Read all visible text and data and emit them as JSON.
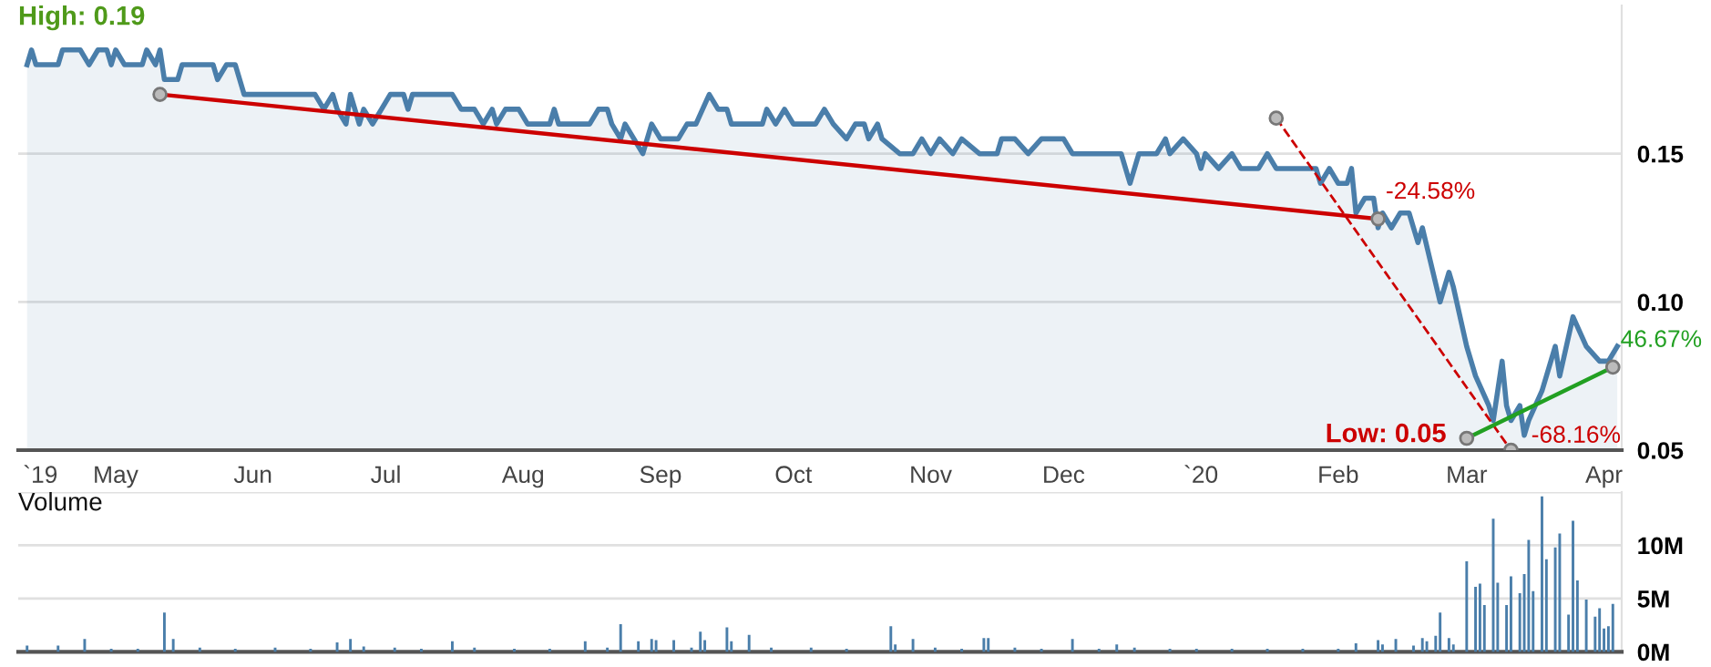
{
  "chart_data": [
    {
      "type": "area",
      "xlim": [
        "2019-04-09",
        "2020-04-05"
      ],
      "xticks": [
        {
          "value": "2019-04-14",
          "label": "`19"
        },
        {
          "value": "2019-05-01",
          "label": "May"
        },
        {
          "value": "2019-06-01",
          "label": "Jun"
        },
        {
          "value": "2019-07-01",
          "label": "Jul"
        },
        {
          "value": "2019-08-01",
          "label": "Aug"
        },
        {
          "value": "2019-09-01",
          "label": "Sep"
        },
        {
          "value": "2019-10-01",
          "label": "Oct"
        },
        {
          "value": "2019-11-01",
          "label": "Nov"
        },
        {
          "value": "2019-12-01",
          "label": "Dec"
        },
        {
          "value": "2020-01-01",
          "label": "`20"
        },
        {
          "value": "2020-02-01",
          "label": "Feb"
        },
        {
          "value": "2020-03-01",
          "label": "Mar"
        },
        {
          "value": "2020-04-01",
          "label": "Apr"
        }
      ],
      "ylim": [
        0.05,
        0.2
      ],
      "yticks": [
        {
          "value": 0.05,
          "label": "0.05"
        },
        {
          "value": 0.1,
          "label": "0.10"
        },
        {
          "value": 0.15,
          "label": "0.15"
        }
      ],
      "grid": "y",
      "series": [
        {
          "color": "#4a7eaa",
          "x": [
            "2019-04-11",
            "2019-04-12",
            "2019-04-13",
            "2019-04-18",
            "2019-04-19",
            "2019-04-23",
            "2019-04-25",
            "2019-04-27",
            "2019-04-29",
            "2019-04-30",
            "2019-05-01",
            "2019-05-03",
            "2019-05-07",
            "2019-05-08",
            "2019-05-10",
            "2019-05-11",
            "2019-05-12",
            "2019-05-15",
            "2019-05-16",
            "2019-05-23",
            "2019-05-24",
            "2019-05-26",
            "2019-05-28",
            "2019-05-30",
            "2019-06-15",
            "2019-06-17",
            "2019-06-19",
            "2019-06-20",
            "2019-06-22",
            "2019-06-23",
            "2019-06-25",
            "2019-06-26",
            "2019-06-28",
            "2019-07-02",
            "2019-07-05",
            "2019-07-06",
            "2019-07-07",
            "2019-07-16",
            "2019-07-18",
            "2019-07-21",
            "2019-07-23",
            "2019-07-25",
            "2019-07-26",
            "2019-07-28",
            "2019-07-31",
            "2019-08-02",
            "2019-08-07",
            "2019-08-08",
            "2019-08-09",
            "2019-08-16",
            "2019-08-18",
            "2019-08-20",
            "2019-08-21",
            "2019-08-23",
            "2019-08-24",
            "2019-08-26",
            "2019-08-28",
            "2019-08-30",
            "2019-09-01",
            "2019-09-05",
            "2019-09-07",
            "2019-09-09",
            "2019-09-12",
            "2019-09-14",
            "2019-09-16",
            "2019-09-17",
            "2019-09-24",
            "2019-09-25",
            "2019-09-27",
            "2019-09-29",
            "2019-10-01",
            "2019-10-06",
            "2019-10-08",
            "2019-10-10",
            "2019-10-13",
            "2019-10-15",
            "2019-10-17",
            "2019-10-18",
            "2019-10-20",
            "2019-10-21",
            "2019-10-25",
            "2019-10-28",
            "2019-10-30",
            "2019-11-01",
            "2019-11-03",
            "2019-11-06",
            "2019-11-08",
            "2019-11-12",
            "2019-11-16",
            "2019-11-17",
            "2019-11-20",
            "2019-11-23",
            "2019-11-26",
            "2019-12-01",
            "2019-12-03",
            "2019-12-14",
            "2019-12-16",
            "2019-12-18",
            "2019-12-22",
            "2019-12-24",
            "2019-12-25",
            "2019-12-28",
            "2019-12-31",
            "2020-01-01",
            "2020-01-02",
            "2020-01-05",
            "2020-01-08",
            "2020-01-10",
            "2020-01-14",
            "2020-01-16",
            "2020-01-18",
            "2020-01-27",
            "2020-01-28",
            "2020-01-30",
            "2020-02-01",
            "2020-02-03",
            "2020-02-04",
            "2020-02-05",
            "2020-02-07",
            "2020-02-09",
            "2020-02-10",
            "2020-02-11",
            "2020-02-13",
            "2020-02-15",
            "2020-02-17",
            "2020-02-19",
            "2020-02-20",
            "2020-02-24",
            "2020-02-26",
            "2020-02-27",
            "2020-03-01",
            "2020-03-03",
            "2020-03-06",
            "2020-03-07",
            "2020-03-09",
            "2020-03-10",
            "2020-03-11",
            "2020-03-13",
            "2020-03-14",
            "2020-03-15",
            "2020-03-18",
            "2020-03-21",
            "2020-03-22",
            "2020-03-25",
            "2020-03-28",
            "2020-03-31",
            "2020-04-02",
            "2020-04-04"
          ],
          "values": [
            0.18,
            0.185,
            0.18,
            0.18,
            0.185,
            0.185,
            0.18,
            0.185,
            0.185,
            0.18,
            0.185,
            0.18,
            0.18,
            0.185,
            0.18,
            0.185,
            0.175,
            0.175,
            0.18,
            0.18,
            0.175,
            0.18,
            0.18,
            0.17,
            0.17,
            0.165,
            0.17,
            0.165,
            0.16,
            0.17,
            0.16,
            0.165,
            0.16,
            0.17,
            0.17,
            0.165,
            0.17,
            0.17,
            0.165,
            0.165,
            0.16,
            0.165,
            0.16,
            0.165,
            0.165,
            0.16,
            0.16,
            0.165,
            0.16,
            0.16,
            0.165,
            0.165,
            0.16,
            0.155,
            0.16,
            0.155,
            0.15,
            0.16,
            0.155,
            0.155,
            0.16,
            0.16,
            0.17,
            0.165,
            0.165,
            0.16,
            0.16,
            0.165,
            0.16,
            0.165,
            0.16,
            0.16,
            0.165,
            0.16,
            0.155,
            0.16,
            0.16,
            0.155,
            0.16,
            0.155,
            0.15,
            0.15,
            0.155,
            0.15,
            0.155,
            0.15,
            0.155,
            0.15,
            0.15,
            0.155,
            0.155,
            0.15,
            0.155,
            0.155,
            0.15,
            0.15,
            0.14,
            0.15,
            0.15,
            0.155,
            0.15,
            0.155,
            0.15,
            0.145,
            0.15,
            0.145,
            0.15,
            0.145,
            0.145,
            0.15,
            0.145,
            0.145,
            0.14,
            0.145,
            0.14,
            0.14,
            0.145,
            0.13,
            0.135,
            0.135,
            0.125,
            0.13,
            0.125,
            0.13,
            0.13,
            0.12,
            0.125,
            0.1,
            0.11,
            0.105,
            0.085,
            0.075,
            0.065,
            0.06,
            0.08,
            0.065,
            0.06,
            0.065,
            0.055,
            0.06,
            0.07,
            0.085,
            0.075,
            0.095,
            0.085,
            0.08,
            0.08,
            0.085
          ]
        },
        {
          "type": "line",
          "color": "#cc0000",
          "marker": "circle",
          "x": [
            "2019-05-11",
            "2020-02-10"
          ],
          "values": [
            0.17,
            0.128
          ]
        },
        {
          "type": "line",
          "color": "#cc0000",
          "marker": "circle",
          "line_style": "dashed",
          "x": [
            "2020-01-18",
            "2020-03-11"
          ],
          "values": [
            0.162,
            0.05
          ]
        },
        {
          "type": "line",
          "color": "#22a022",
          "marker": "circle",
          "x": [
            "2020-03-01",
            "2020-04-03"
          ],
          "values": [
            0.054,
            0.078
          ]
        }
      ],
      "annotations": [
        "High: 0.19",
        {
          "text": "Low: 0.05",
          "x": "2020-03-09",
          "y": 0.05
        },
        {
          "text": "-24.58%",
          "x": "2020-02-10",
          "y": 0.128
        },
        {
          "text": "-68.16%",
          "x": "2020-03-11",
          "y": 0.05
        },
        {
          "text": "46.67%",
          "x": "2020-04-03",
          "y": 0.078
        }
      ]
    },
    {
      "type": "bar",
      "title": "Volume",
      "xlim": [
        "2019-04-09",
        "2020-04-05"
      ],
      "ylim": [
        0,
        15
      ],
      "yticks": [
        {
          "value": 0,
          "label": "0M"
        },
        {
          "value": 5,
          "label": "5M"
        },
        {
          "value": 10,
          "label": "10M"
        },
        {
          "value": 15,
          "label": null
        }
      ],
      "grid": "y",
      "tick_labels": "y",
      "series": [
        {
          "color": "#4a7eaa",
          "x": [
            "2019-04-11",
            "2019-04-18",
            "2019-04-24",
            "2019-04-30",
            "2019-05-06",
            "2019-05-12",
            "2019-05-14",
            "2019-05-20",
            "2019-05-28",
            "2019-06-06",
            "2019-06-14",
            "2019-06-20",
            "2019-06-23",
            "2019-06-26",
            "2019-07-03",
            "2019-07-09",
            "2019-07-16",
            "2019-07-21",
            "2019-07-30",
            "2019-08-07",
            "2019-08-15",
            "2019-08-20",
            "2019-08-23",
            "2019-08-27",
            "2019-08-30",
            "2019-08-31",
            "2019-09-04",
            "2019-09-08",
            "2019-09-10",
            "2019-09-11",
            "2019-09-16",
            "2019-09-17",
            "2019-09-21",
            "2019-09-26",
            "2019-10-05",
            "2019-10-13",
            "2019-10-23",
            "2019-10-24",
            "2019-10-28",
            "2019-11-02",
            "2019-11-08",
            "2019-11-13",
            "2019-11-14",
            "2019-11-20",
            "2019-11-26",
            "2019-12-03",
            "2019-12-09",
            "2019-12-13",
            "2019-12-17",
            "2019-12-25",
            "2019-12-31",
            "2020-01-08",
            "2020-01-16",
            "2020-01-24",
            "2020-02-01",
            "2020-02-05",
            "2020-02-10",
            "2020-02-11",
            "2020-02-14",
            "2020-02-18",
            "2020-02-20",
            "2020-02-21",
            "2020-02-23",
            "2020-02-24",
            "2020-02-26",
            "2020-02-27",
            "2020-03-01",
            "2020-03-03",
            "2020-03-04",
            "2020-03-05",
            "2020-03-07",
            "2020-03-08",
            "2020-03-10",
            "2020-03-11",
            "2020-03-13",
            "2020-03-14",
            "2020-03-15",
            "2020-03-16",
            "2020-03-18",
            "2020-03-19",
            "2020-03-21",
            "2020-03-22",
            "2020-03-24",
            "2020-03-25",
            "2020-03-26",
            "2020-03-28",
            "2020-03-30",
            "2020-03-31",
            "2020-04-01",
            "2020-04-02",
            "2020-04-03"
          ],
          "values": [
            0.6,
            0.6,
            1.2,
            0.3,
            0.3,
            3.7,
            1.2,
            0.4,
            0.3,
            0.4,
            0.3,
            0.9,
            1.2,
            0.5,
            0.4,
            0.3,
            1.0,
            0.4,
            0.3,
            0.3,
            1.0,
            0.4,
            2.6,
            1.0,
            1.2,
            1.1,
            1.1,
            0.4,
            1.9,
            1.1,
            2.3,
            1.0,
            1.6,
            0.4,
            0.4,
            0.3,
            2.4,
            0.7,
            1.2,
            0.4,
            0.3,
            1.3,
            1.3,
            0.4,
            0.3,
            1.2,
            0.3,
            0.7,
            0.4,
            0.3,
            0.3,
            0.3,
            0.3,
            0.3,
            0.3,
            0.8,
            1.1,
            0.7,
            1.2,
            0.6,
            1.3,
            1.0,
            1.5,
            3.7,
            1.3,
            0.7,
            8.5,
            6.1,
            6.4,
            4.4,
            12.5,
            6.5,
            4.4,
            7.1,
            5.5,
            7.3,
            10.5,
            5.7,
            14.6,
            8.7,
            9.8,
            11.1,
            3.5,
            12.3,
            6.7,
            4.9,
            3.3,
            4.1,
            2.2,
            2.4,
            4.5
          ]
        }
      ]
    }
  ]
}
